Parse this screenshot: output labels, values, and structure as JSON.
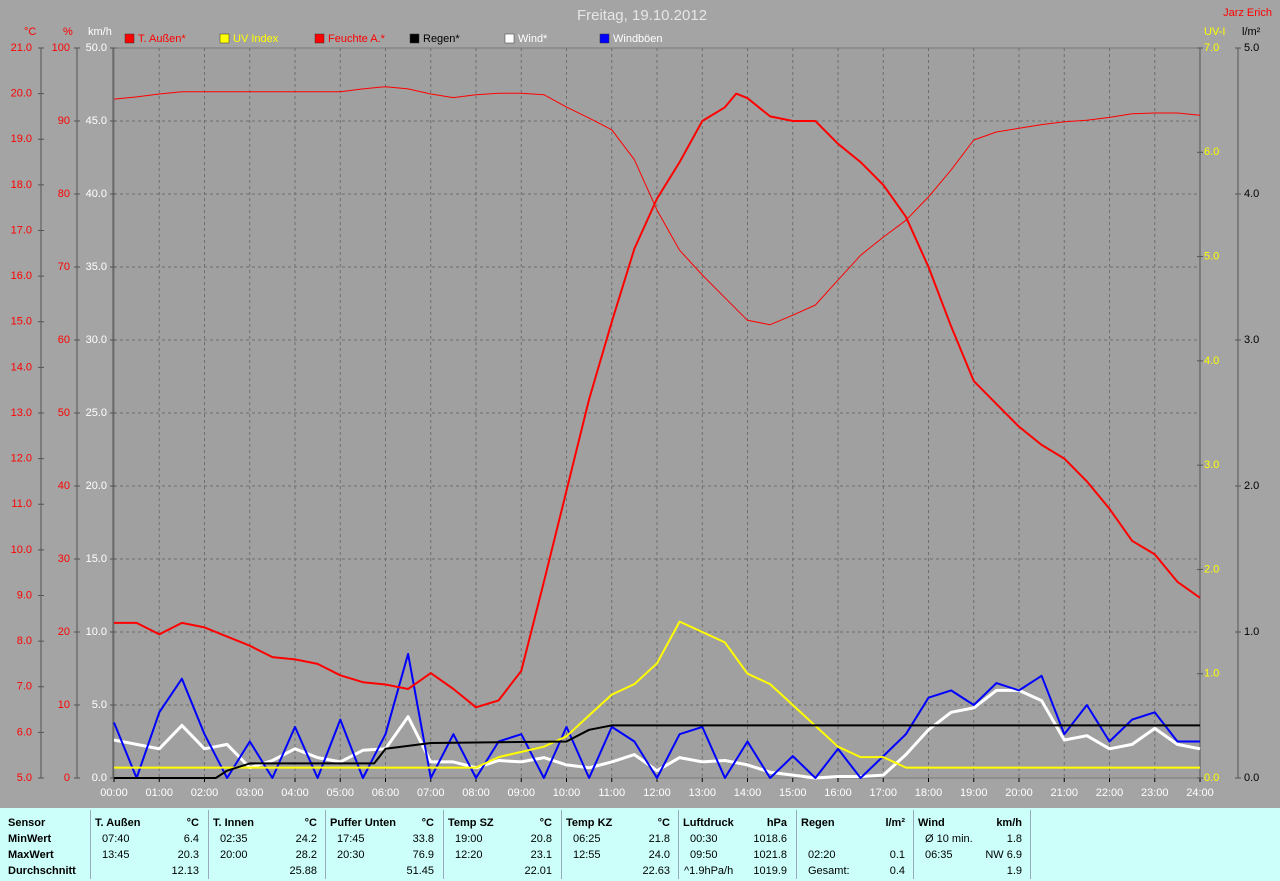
{
  "chart_data": {
    "type": "line",
    "title": "Freitag, 19.10.2012",
    "author": "Jarz Erich",
    "grid": true,
    "xlim": [
      0,
      24
    ],
    "xticks": [
      {
        "value": 0,
        "label": "00:00"
      },
      {
        "value": 1,
        "label": "01:00"
      },
      {
        "value": 2,
        "label": "02:00"
      },
      {
        "value": 3,
        "label": "03:00"
      },
      {
        "value": 4,
        "label": "04:00"
      },
      {
        "value": 5,
        "label": "05:00"
      },
      {
        "value": 6,
        "label": "06:00"
      },
      {
        "value": 7,
        "label": "07:00"
      },
      {
        "value": 8,
        "label": "08:00"
      },
      {
        "value": 9,
        "label": "09:00"
      },
      {
        "value": 10,
        "label": "10:00"
      },
      {
        "value": 11,
        "label": "11:00"
      },
      {
        "value": 12,
        "label": "12:00"
      },
      {
        "value": 13,
        "label": "13:00"
      },
      {
        "value": 14,
        "label": "14:00"
      },
      {
        "value": 15,
        "label": "15:00"
      },
      {
        "value": 16,
        "label": "16:00"
      },
      {
        "value": 17,
        "label": "17:00"
      },
      {
        "value": 18,
        "label": "18:00"
      },
      {
        "value": 19,
        "label": "19:00"
      },
      {
        "value": 20,
        "label": "20:00"
      },
      {
        "value": 21,
        "label": "21:00"
      },
      {
        "value": 22,
        "label": "22:00"
      },
      {
        "value": 23,
        "label": "23:00"
      },
      {
        "value": 24,
        "label": "24:00"
      }
    ],
    "axes": [
      {
        "label": "°C",
        "color": "#ff0000",
        "side": "left",
        "lim": [
          5,
          21
        ],
        "ticks": [
          {
            "value": 5,
            "label": "5.0"
          },
          {
            "value": 6,
            "label": "6.0"
          },
          {
            "value": 7,
            "label": "7.0"
          },
          {
            "value": 8,
            "label": "8.0"
          },
          {
            "value": 9,
            "label": "9.0"
          },
          {
            "value": 10,
            "label": "10.0"
          },
          {
            "value": 11,
            "label": "11.0"
          },
          {
            "value": 12,
            "label": "12.0"
          },
          {
            "value": 13,
            "label": "13.0"
          },
          {
            "value": 14,
            "label": "14.0"
          },
          {
            "value": 15,
            "label": "15.0"
          },
          {
            "value": 16,
            "label": "16.0"
          },
          {
            "value": 17,
            "label": "17.0"
          },
          {
            "value": 18,
            "label": "18.0"
          },
          {
            "value": 19,
            "label": "19.0"
          },
          {
            "value": 20,
            "label": "20.0"
          },
          {
            "value": 21,
            "label": "21.0"
          }
        ]
      },
      {
        "label": "%",
        "color": "#ff0000",
        "side": "left",
        "lim": [
          0,
          100
        ],
        "ticks": [
          0,
          10,
          20,
          30,
          40,
          50,
          60,
          70,
          80,
          90,
          100
        ]
      },
      {
        "label": "km/h",
        "color": "#ffffff",
        "side": "left",
        "grid": true,
        "lim": [
          0,
          50
        ],
        "ticks": [
          {
            "value": 0,
            "label": "0.0"
          },
          {
            "value": 5,
            "label": "5.0"
          },
          {
            "value": 10,
            "label": "10.0"
          },
          {
            "value": 15,
            "label": "15.0"
          },
          {
            "value": 20,
            "label": "20.0"
          },
          {
            "value": 25,
            "label": "25.0"
          },
          {
            "value": 30,
            "label": "30.0"
          },
          {
            "value": 35,
            "label": "35.0"
          },
          {
            "value": 40,
            "label": "40.0"
          },
          {
            "value": 45,
            "label": "45.0"
          },
          {
            "value": 50,
            "label": "50.0"
          }
        ]
      },
      {
        "label": "UV-I",
        "color": "#ffff00",
        "side": "right",
        "lim": [
          0,
          7
        ],
        "ticks": [
          {
            "value": 0,
            "label": "0.0"
          },
          {
            "value": 1,
            "label": "1.0"
          },
          {
            "value": 2,
            "label": "2.0"
          },
          {
            "value": 3,
            "label": "3.0"
          },
          {
            "value": 4,
            "label": "4.0"
          },
          {
            "value": 5,
            "label": "5.0"
          },
          {
            "value": 6,
            "label": "6.0"
          },
          {
            "value": 7,
            "label": "7.0"
          }
        ]
      },
      {
        "label": "l/m²",
        "color": "#000000",
        "side": "right",
        "lim": [
          0,
          5
        ],
        "ticks": [
          {
            "value": 0,
            "label": "0.0"
          },
          {
            "value": 1,
            "label": "1.0"
          },
          {
            "value": 2,
            "label": "2.0"
          },
          {
            "value": 3,
            "label": "3.0"
          },
          {
            "value": 4,
            "label": "4.0"
          },
          {
            "value": 5,
            "label": "5.0"
          }
        ]
      }
    ],
    "series": [
      {
        "name": "T. Außen*",
        "color": "#ff0000",
        "axis": 0,
        "line_width": 2,
        "x": [
          0,
          0.5,
          1,
          1.5,
          2,
          2.5,
          3,
          3.5,
          4,
          4.5,
          5,
          5.5,
          6,
          6.5,
          7,
          7.5,
          8,
          8.5,
          9,
          9.5,
          10,
          10.5,
          11,
          11.5,
          12,
          12.5,
          13,
          13.5,
          13.75,
          14,
          14.5,
          15,
          15.5,
          16,
          16.5,
          17,
          17.5,
          18,
          18.5,
          19,
          19.5,
          20,
          20.5,
          21,
          21.5,
          22,
          22.5,
          23,
          23.5,
          24
        ],
        "values": [
          8.4,
          8.4,
          8.15,
          8.4,
          8.3,
          8.1,
          7.9,
          7.65,
          7.6,
          7.5,
          7.25,
          7.1,
          7.05,
          6.95,
          7.3,
          6.95,
          6.55,
          6.7,
          7.35,
          9.3,
          11.3,
          13.3,
          15.0,
          16.6,
          17.7,
          18.5,
          19.4,
          19.7,
          20.0,
          19.9,
          19.5,
          19.4,
          19.4,
          18.9,
          18.5,
          18.0,
          17.3,
          16.2,
          14.9,
          13.7,
          13.2,
          12.7,
          12.3,
          12.0,
          11.5,
          10.9,
          10.2,
          9.9,
          9.3,
          8.95
        ]
      },
      {
        "name": "UV Index",
        "color": "#ffff00",
        "axis": 3,
        "line_width": 2,
        "x": [
          0,
          8,
          8.5,
          9.5,
          10,
          10.5,
          11,
          11.5,
          12,
          12.5,
          13,
          13.5,
          14,
          14.5,
          15,
          15.5,
          16,
          16.5,
          17,
          17.5,
          24
        ],
        "values": [
          0.1,
          0.1,
          0.2,
          0.3,
          0.4,
          0.6,
          0.8,
          0.9,
          1.1,
          1.5,
          1.4,
          1.3,
          1.0,
          0.9,
          0.7,
          0.5,
          0.3,
          0.2,
          0.2,
          0.1,
          0.1
        ]
      },
      {
        "name": "Feuchte A.*",
        "color": "#ff0000",
        "axis": 1,
        "line_width": 1,
        "x": [
          0,
          0.5,
          1,
          1.5,
          2,
          2.5,
          3,
          3.5,
          4,
          4.5,
          5,
          5.5,
          6,
          6.5,
          7,
          7.5,
          8,
          8.5,
          9,
          9.5,
          10,
          10.5,
          11,
          11.5,
          12,
          12.5,
          13,
          13.5,
          14,
          14.5,
          15,
          15.5,
          16,
          16.5,
          17,
          17.5,
          18,
          18.5,
          19,
          19.5,
          20,
          20.5,
          21,
          21.5,
          22,
          22.5,
          23,
          23.5,
          24
        ],
        "values": [
          93.0,
          93.3,
          93.7,
          94,
          94,
          94,
          94,
          94,
          94,
          94,
          94,
          94.4,
          94.7,
          94.4,
          93.7,
          93.2,
          93.6,
          93.8,
          93.8,
          93.6,
          91.9,
          90.4,
          88.8,
          84.7,
          77.8,
          72.3,
          68.9,
          65.8,
          62.7,
          62.1,
          63.4,
          64.8,
          68.2,
          71.6,
          74.1,
          76.4,
          79.6,
          83.3,
          87.4,
          88.5,
          89.0,
          89.5,
          89.9,
          90.1,
          90.5,
          91.0,
          91.1,
          91.1,
          90.8
        ]
      },
      {
        "name": "Regen*",
        "color": "#000000",
        "axis": 4,
        "line_width": 2,
        "x": [
          0,
          2.25,
          2.5,
          3,
          5.75,
          6,
          7,
          10,
          10.5,
          11,
          24
        ],
        "values": [
          0,
          0,
          0.05,
          0.1,
          0.1,
          0.2,
          0.24,
          0.25,
          0.33,
          0.36,
          0.36
        ]
      },
      {
        "name": "Wind*",
        "color": "#ffffff",
        "axis": 2,
        "line_width": 3,
        "x": [
          0,
          0.5,
          1,
          1.5,
          2,
          2.5,
          3,
          3.5,
          4,
          4.5,
          5,
          5.5,
          6,
          6.5,
          7,
          7.5,
          8,
          8.5,
          9,
          9.5,
          10,
          10.5,
          11,
          11.5,
          12,
          12.5,
          13,
          13.5,
          14,
          14.5,
          15,
          15.5,
          16,
          16.5,
          17,
          17.5,
          18,
          18.5,
          19,
          19.5,
          20,
          20.5,
          21,
          21.5,
          22,
          22.5,
          23,
          23.5,
          24
        ],
        "values": [
          2.6,
          2.3,
          2.0,
          3.6,
          2.0,
          2.3,
          0.7,
          1.2,
          2.0,
          1.4,
          1.1,
          1.9,
          2.0,
          4.2,
          1.1,
          1.1,
          0.7,
          1.2,
          1.1,
          1.4,
          0.9,
          0.7,
          1.1,
          1.6,
          0.5,
          1.4,
          1.1,
          1.2,
          0.9,
          0.4,
          0.2,
          0,
          0.1,
          0.1,
          0.2,
          1.6,
          3.3,
          4.5,
          4.8,
          6.0,
          6.0,
          5.3,
          2.6,
          2.9,
          2.0,
          2.3,
          3.4,
          2.3,
          2.0
        ]
      },
      {
        "name": "Windböen",
        "color": "#0000ff",
        "axis": 2,
        "line_width": 2,
        "x": [
          0,
          0.5,
          1,
          1.5,
          2,
          2.5,
          3,
          3.5,
          4,
          4.5,
          5,
          5.5,
          6,
          6.5,
          7,
          7.5,
          8,
          8.5,
          9,
          9.5,
          10,
          10.5,
          11,
          11.5,
          12,
          12.5,
          13,
          13.5,
          14,
          14.5,
          15,
          15.5,
          16,
          16.5,
          17,
          17.5,
          18,
          18.5,
          19,
          19.5,
          20,
          20.5,
          21,
          21.5,
          22,
          22.5,
          23,
          23.5,
          24
        ],
        "values": [
          3.8,
          0,
          4.5,
          6.8,
          3.0,
          0,
          2.5,
          0,
          3.5,
          0,
          4.0,
          0,
          3.0,
          8.5,
          0,
          3.0,
          0,
          2.5,
          3.0,
          0,
          3.5,
          0,
          3.5,
          2.5,
          0,
          3.0,
          3.5,
          0,
          2.5,
          0,
          1.5,
          0,
          2.0,
          0,
          1.5,
          3.0,
          5.5,
          6.0,
          5.0,
          6.5,
          6.0,
          7.0,
          3.0,
          5.0,
          2.5,
          4.0,
          4.5,
          2.5,
          2.5
        ]
      }
    ]
  },
  "stats": {
    "row_labels": [
      "Sensor",
      "MinWert",
      "MaxWert",
      "Durchschnitt"
    ],
    "columns": [
      {
        "name": "T. Außen",
        "unit": "°C",
        "rows": [
          [
            "07:40",
            "6.4"
          ],
          [
            "13:45",
            "20.3"
          ],
          [
            null,
            "12.13"
          ]
        ]
      },
      {
        "name": "T. Innen",
        "unit": "°C",
        "rows": [
          [
            "02:35",
            "24.2"
          ],
          [
            "20:00",
            "28.2"
          ],
          [
            null,
            "25.88"
          ]
        ]
      },
      {
        "name": "Puffer Unten",
        "unit": "°C",
        "rows": [
          [
            "17:45",
            "33.8"
          ],
          [
            "20:30",
            "76.9"
          ],
          [
            null,
            "51.45"
          ]
        ]
      },
      {
        "name": "Temp SZ",
        "unit": "°C",
        "rows": [
          [
            "19:00",
            "20.8"
          ],
          [
            "12:20",
            "23.1"
          ],
          [
            null,
            "22.01"
          ]
        ]
      },
      {
        "name": "Temp KZ",
        "unit": "°C",
        "rows": [
          [
            "06:25",
            "21.8"
          ],
          [
            "12:55",
            "24.0"
          ],
          [
            null,
            "22.63"
          ]
        ]
      },
      {
        "name": "Luftdruck",
        "unit": "hPa",
        "rows": [
          [
            "00:30",
            "1018.6"
          ],
          [
            "09:50",
            "1021.8"
          ],
          [
            "^1.9hPa/h",
            "1019.9"
          ]
        ]
      },
      {
        "name": "Regen",
        "unit": "l/m²",
        "rows": [
          [
            null,
            null
          ],
          [
            "02:20",
            "0.1"
          ],
          [
            "Gesamt:",
            "0.4"
          ]
        ]
      },
      {
        "name": "Wind",
        "unit": "km/h",
        "rows": [
          [
            "Ø 10 min.",
            "1.8"
          ],
          [
            "06:35",
            "NW 6.9"
          ],
          [
            null,
            "1.9"
          ]
        ]
      }
    ]
  }
}
